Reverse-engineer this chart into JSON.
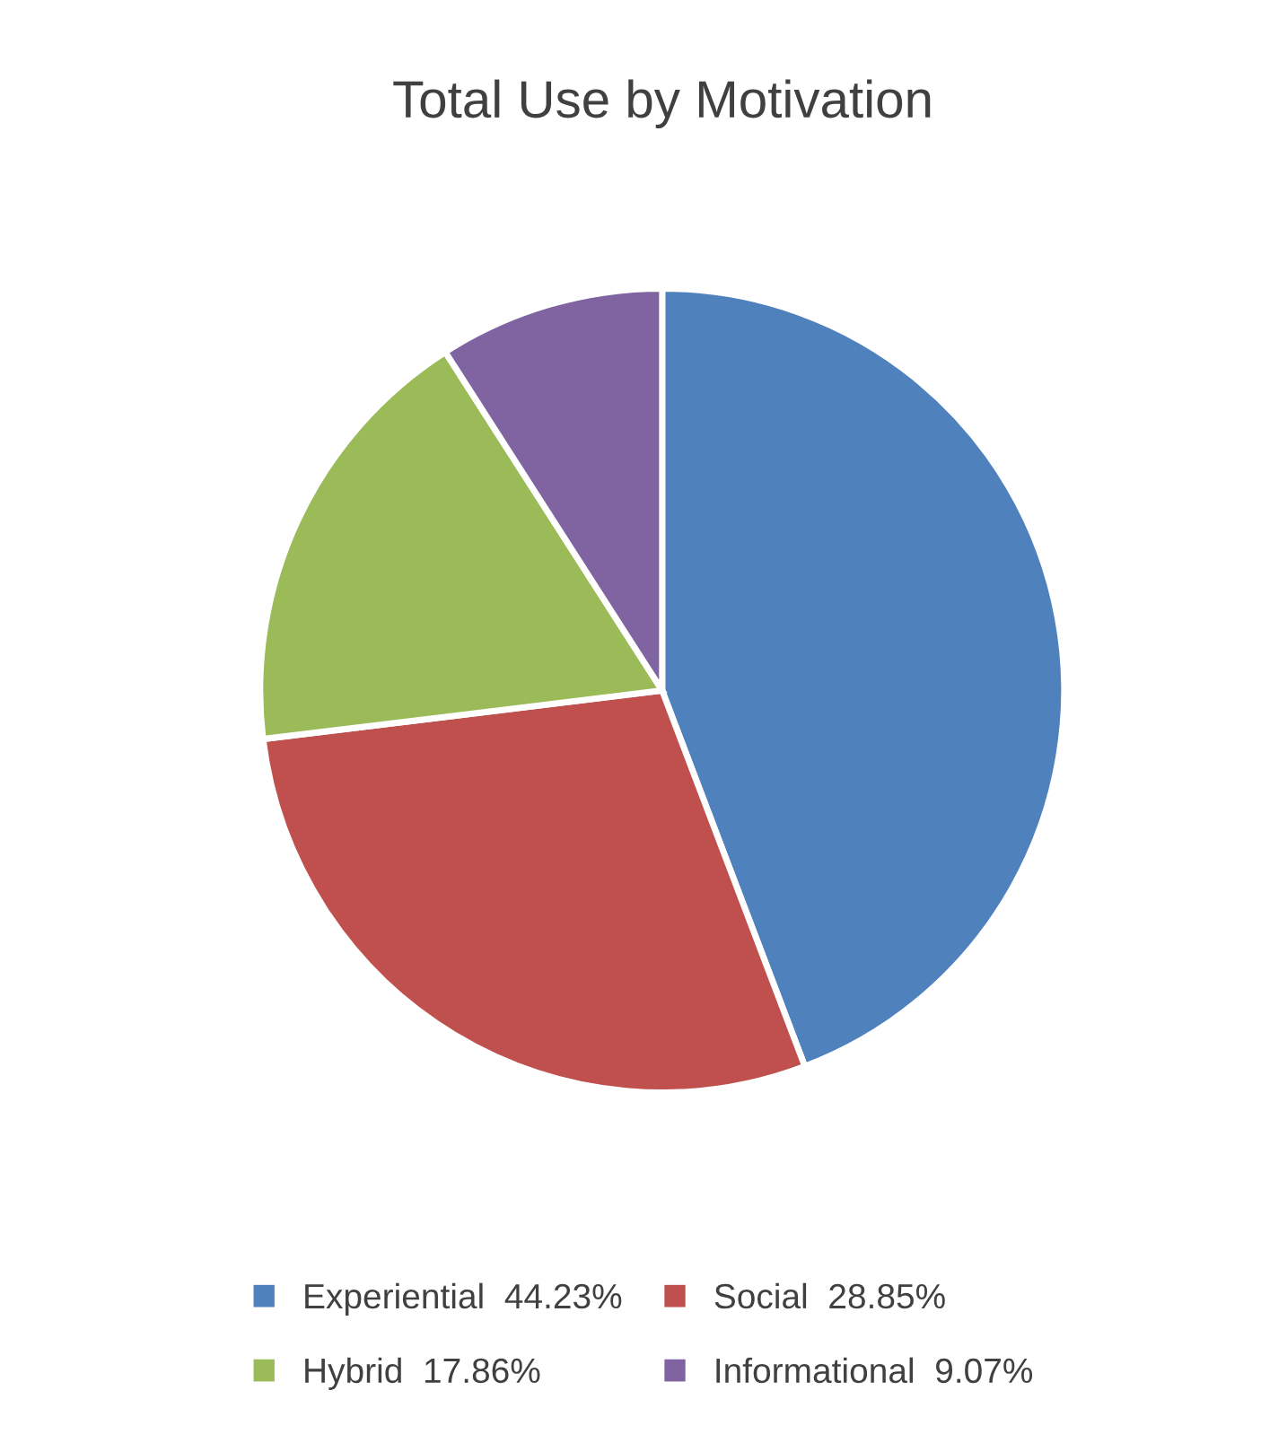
{
  "chart_data": {
    "type": "pie",
    "title": "Total Use by Motivation",
    "categories": [
      "Experiential",
      "Social",
      "Hybrid",
      "Informational"
    ],
    "values": [
      44.23,
      28.85,
      17.86,
      9.07
    ],
    "value_labels": [
      "44.23%",
      "28.85%",
      "17.86%",
      "9.07%"
    ],
    "colors": [
      "#4f81bd",
      "#c0504d",
      "#9bbb59",
      "#8064a2"
    ],
    "legend": "bottom"
  }
}
